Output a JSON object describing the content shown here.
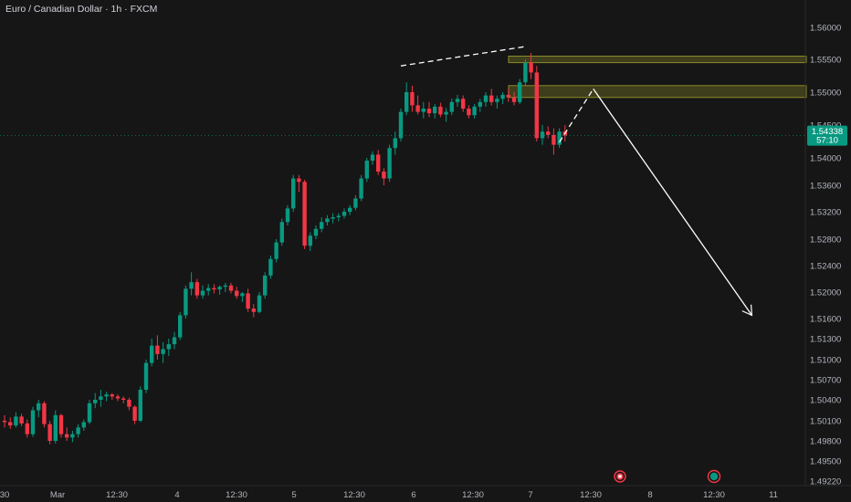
{
  "header": {
    "title": "Euro / Canadian Dollar · 1h · FXCM"
  },
  "price_tag": {
    "price": "1.54338",
    "countdown": "57:10",
    "color": "#089981"
  },
  "colors": {
    "up": "#089981",
    "down": "#f23645",
    "zone": "#8a8a2a",
    "annotation": "#ffffff"
  },
  "icons": [
    "event-flag-icon",
    "earnings-marker-icon"
  ],
  "chart_data": {
    "type": "candlestick",
    "title": "Euro / Canadian Dollar · 1h · FXCM",
    "price_axis_labels": [
      "1.56000",
      "1.55500",
      "1.55000",
      "1.54500",
      "1.54000",
      "1.53600",
      "1.53200",
      "1.52800",
      "1.52400",
      "1.52000",
      "1.51600",
      "1.51300",
      "1.51000",
      "1.50700",
      "1.50400",
      "1.50100",
      "1.49800",
      "1.49500",
      "1.49220"
    ],
    "time_axis_labels": [
      "30",
      "Mar",
      "12:30",
      "4",
      "12:30",
      "5",
      "12:30",
      "6",
      "12:30",
      "7",
      "12:30",
      "8",
      "12:30",
      "11"
    ],
    "last_price": 1.54338,
    "grid": false,
    "candles": [
      [
        1.501,
        1.5018,
        1.5,
        1.5008
      ],
      [
        1.5008,
        1.5015,
        1.4998,
        1.5003
      ],
      [
        1.5003,
        1.5022,
        1.5,
        1.5016
      ],
      [
        1.5016,
        1.502,
        1.5002,
        1.5006
      ],
      [
        1.5006,
        1.5012,
        1.4985,
        1.499
      ],
      [
        1.499,
        1.503,
        1.4986,
        1.5025
      ],
      [
        1.5025,
        1.504,
        1.5015,
        1.5035
      ],
      [
        1.5035,
        1.5038,
        1.5,
        1.5005
      ],
      [
        1.5005,
        1.501,
        1.4975,
        1.498
      ],
      [
        1.498,
        1.5025,
        1.4976,
        1.5018
      ],
      [
        1.5018,
        1.502,
        1.4985,
        1.499
      ],
      [
        1.499,
        1.5,
        1.498,
        1.4985
      ],
      [
        1.4985,
        1.4995,
        1.4978,
        1.499
      ],
      [
        1.499,
        1.5005,
        1.4985,
        1.5
      ],
      [
        1.5,
        1.5012,
        1.4995,
        1.5008
      ],
      [
        1.5008,
        1.504,
        1.5005,
        1.5035
      ],
      [
        1.5035,
        1.505,
        1.5028,
        1.504
      ],
      [
        1.504,
        1.5055,
        1.503,
        1.5045
      ],
      [
        1.5045,
        1.5052,
        1.5038,
        1.5048
      ],
      [
        1.5048,
        1.505,
        1.504,
        1.5045
      ],
      [
        1.5045,
        1.5048,
        1.5038,
        1.5042
      ],
      [
        1.5042,
        1.5045,
        1.5035,
        1.504
      ],
      [
        1.504,
        1.5043,
        1.5025,
        1.503
      ],
      [
        1.503,
        1.5032,
        1.5005,
        1.501
      ],
      [
        1.501,
        1.506,
        1.5008,
        1.5055
      ],
      [
        1.5055,
        1.51,
        1.505,
        1.5095
      ],
      [
        1.5095,
        1.513,
        1.509,
        1.512
      ],
      [
        1.512,
        1.5135,
        1.51,
        1.5108
      ],
      [
        1.5108,
        1.5125,
        1.5095,
        1.5115
      ],
      [
        1.5115,
        1.513,
        1.5105,
        1.5122
      ],
      [
        1.5122,
        1.514,
        1.5115,
        1.5132
      ],
      [
        1.5132,
        1.517,
        1.5128,
        1.5165
      ],
      [
        1.5165,
        1.521,
        1.516,
        1.5205
      ],
      [
        1.5205,
        1.523,
        1.5195,
        1.5215
      ],
      [
        1.5215,
        1.522,
        1.519,
        1.5195
      ],
      [
        1.5195,
        1.521,
        1.519,
        1.5202
      ],
      [
        1.5202,
        1.5212,
        1.5195,
        1.5206
      ],
      [
        1.5206,
        1.5212,
        1.5198,
        1.5204
      ],
      [
        1.5204,
        1.521,
        1.5196,
        1.5208
      ],
      [
        1.5208,
        1.5214,
        1.52,
        1.521
      ],
      [
        1.521,
        1.5214,
        1.5198,
        1.5202
      ],
      [
        1.5202,
        1.5208,
        1.519,
        1.5194
      ],
      [
        1.5194,
        1.52,
        1.5185,
        1.5198
      ],
      [
        1.5198,
        1.5205,
        1.517,
        1.5175
      ],
      [
        1.5175,
        1.5182,
        1.5162,
        1.517
      ],
      [
        1.517,
        1.52,
        1.5168,
        1.5195
      ],
      [
        1.5195,
        1.523,
        1.519,
        1.5225
      ],
      [
        1.5225,
        1.5255,
        1.522,
        1.525
      ],
      [
        1.525,
        1.528,
        1.5245,
        1.5275
      ],
      [
        1.5275,
        1.531,
        1.527,
        1.5305
      ],
      [
        1.5305,
        1.533,
        1.53,
        1.5325
      ],
      [
        1.5325,
        1.5375,
        1.532,
        1.537
      ],
      [
        1.537,
        1.5375,
        1.535,
        1.5365
      ],
      [
        1.5365,
        1.5368,
        1.5265,
        1.527
      ],
      [
        1.527,
        1.529,
        1.5262,
        1.5285
      ],
      [
        1.5285,
        1.53,
        1.528,
        1.5295
      ],
      [
        1.5295,
        1.5312,
        1.529,
        1.5305
      ],
      [
        1.5305,
        1.5315,
        1.53,
        1.531
      ],
      [
        1.531,
        1.5318,
        1.5303,
        1.5312
      ],
      [
        1.5312,
        1.5318,
        1.5306,
        1.5314
      ],
      [
        1.5314,
        1.5325,
        1.531,
        1.532
      ],
      [
        1.532,
        1.533,
        1.5315,
        1.5326
      ],
      [
        1.5326,
        1.5345,
        1.5322,
        1.534
      ],
      [
        1.534,
        1.5375,
        1.5336,
        1.537
      ],
      [
        1.537,
        1.54,
        1.5365,
        1.5396
      ],
      [
        1.5396,
        1.541,
        1.539,
        1.5405
      ],
      [
        1.5405,
        1.5412,
        1.5375,
        1.538
      ],
      [
        1.538,
        1.5385,
        1.536,
        1.537
      ],
      [
        1.537,
        1.542,
        1.5365,
        1.5415
      ],
      [
        1.5415,
        1.544,
        1.5405,
        1.543
      ],
      [
        1.543,
        1.5475,
        1.5425,
        1.547
      ],
      [
        1.547,
        1.5515,
        1.5465,
        1.55
      ],
      [
        1.55,
        1.551,
        1.547,
        1.548
      ],
      [
        1.548,
        1.5495,
        1.5466,
        1.547
      ],
      [
        1.547,
        1.5485,
        1.546,
        1.5475
      ],
      [
        1.5475,
        1.5485,
        1.5462,
        1.5468
      ],
      [
        1.5468,
        1.5482,
        1.546,
        1.5478
      ],
      [
        1.5478,
        1.5484,
        1.5462,
        1.5466
      ],
      [
        1.5466,
        1.5476,
        1.5455,
        1.547
      ],
      [
        1.547,
        1.549,
        1.5465,
        1.5485
      ],
      [
        1.5485,
        1.5496,
        1.5478,
        1.549
      ],
      [
        1.549,
        1.5495,
        1.547,
        1.5475
      ],
      [
        1.5475,
        1.548,
        1.546,
        1.5465
      ],
      [
        1.5465,
        1.5482,
        1.546,
        1.5478
      ],
      [
        1.5478,
        1.549,
        1.547,
        1.5485
      ],
      [
        1.5485,
        1.55,
        1.5478,
        1.5495
      ],
      [
        1.5495,
        1.5505,
        1.548,
        1.5485
      ],
      [
        1.5485,
        1.5495,
        1.5475,
        1.549
      ],
      [
        1.549,
        1.55,
        1.5482,
        1.5496
      ],
      [
        1.5496,
        1.5506,
        1.5485,
        1.5492
      ],
      [
        1.5492,
        1.55,
        1.548,
        1.5485
      ],
      [
        1.5485,
        1.552,
        1.5482,
        1.5515
      ],
      [
        1.5515,
        1.555,
        1.551,
        1.5545
      ],
      [
        1.5545,
        1.556,
        1.552,
        1.553
      ],
      [
        1.553,
        1.554,
        1.5425,
        1.543
      ],
      [
        1.543,
        1.545,
        1.542,
        1.544
      ],
      [
        1.544,
        1.5448,
        1.543,
        1.5435
      ],
      [
        1.5435,
        1.5445,
        1.5405,
        1.542
      ],
      [
        1.542,
        1.5445,
        1.5415,
        1.544
      ],
      [
        1.544,
        1.545,
        1.5425,
        1.5434
      ]
    ],
    "zones": [
      {
        "top": 1.5555,
        "bottom": 1.5545,
        "label": ""
      },
      {
        "top": 1.551,
        "bottom": 1.5492,
        "label": ""
      }
    ],
    "annotations": [
      {
        "type": "dashed-line",
        "from": [
          70,
          1.554
        ],
        "to": [
          92,
          1.557
        ]
      },
      {
        "type": "dashed-line",
        "from": [
          98,
          1.5424
        ],
        "to": [
          104,
          1.5505
        ]
      },
      {
        "type": "arrow",
        "from": [
          104,
          1.5505
        ],
        "to": [
          132,
          1.5165
        ]
      }
    ]
  }
}
